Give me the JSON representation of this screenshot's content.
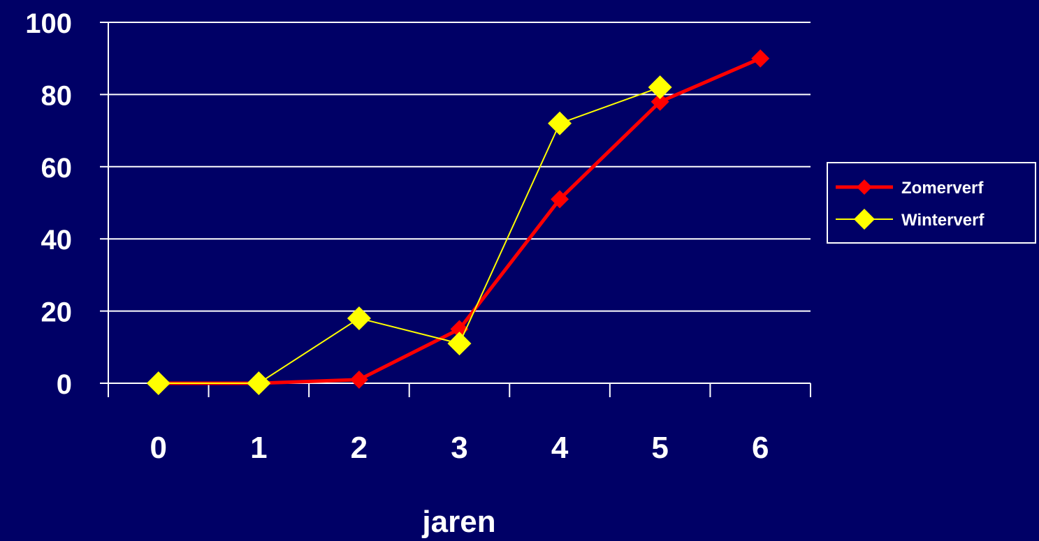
{
  "chart_data": {
    "type": "line",
    "categories": [
      "0",
      "1",
      "2",
      "3",
      "4",
      "5",
      "6"
    ],
    "x": [
      0,
      1,
      2,
      3,
      4,
      5,
      6
    ],
    "xlabel": "jaren",
    "ylabel": "",
    "title": "",
    "ylim": [
      0,
      100
    ],
    "yticks": [
      0,
      20,
      40,
      60,
      80,
      100
    ],
    "grid": true,
    "legend": "right",
    "series": [
      {
        "name": "Zomerverf",
        "color": "#ff0000",
        "values": [
          0,
          0,
          1,
          15,
          51,
          78,
          90
        ]
      },
      {
        "name": "Winterverf",
        "color": "#ffff00",
        "values": [
          0,
          0,
          18,
          11,
          72,
          82,
          null
        ]
      }
    ]
  }
}
